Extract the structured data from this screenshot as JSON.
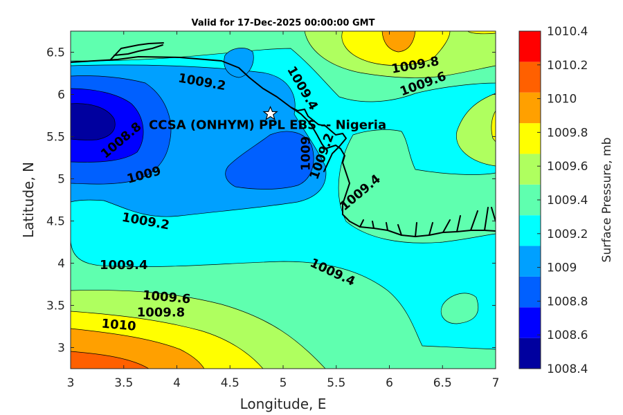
{
  "chart_data": {
    "type": "contour-map",
    "title": "Valid for 17-Dec-2025 00:00:00 GMT",
    "xlabel": "Longitude, E",
    "ylabel": "Latitude, N",
    "xlim": [
      3,
      7
    ],
    "ylim": [
      2.75,
      6.75
    ],
    "x_ticks": [
      "3",
      "3.5",
      "4",
      "4.5",
      "5",
      "5.5",
      "6",
      "6.5",
      "7"
    ],
    "y_ticks": [
      "3",
      "3.5",
      "4",
      "4.5",
      "5",
      "5.5",
      "6",
      "6.5"
    ],
    "colorbar": {
      "label": "Surface Pressure, mb",
      "levels": [
        1008.4,
        1008.6,
        1008.8,
        1009.0,
        1009.2,
        1009.4,
        1009.6,
        1009.8,
        1010.0,
        1010.2,
        1010.4
      ],
      "tick_labels": [
        "1010.4",
        "1010.2",
        "1010",
        "1009.8",
        "1009.6",
        "1009.4",
        "1009.2",
        "1009",
        "1008.8",
        "1008.6",
        "1008.4"
      ],
      "colors": [
        "#00009f",
        "#0000ff",
        "#0060ff",
        "#00a0ff",
        "#00ffff",
        "#5fffaf",
        "#afff5f",
        "#ffff00",
        "#ffa000",
        "#ff6000",
        "#ff0000"
      ]
    },
    "contour_labels": [
      {
        "text": "1009.2",
        "lon": 4.23,
        "lat": 6.1
      },
      {
        "text": "1009.4",
        "lon": 5.15,
        "lat": 6.05
      },
      {
        "text": "1009.8",
        "lon": 6.25,
        "lat": 6.3
      },
      {
        "text": "1009.6",
        "lon": 6.33,
        "lat": 6.08
      },
      {
        "text": "1008.8",
        "lon": 3.5,
        "lat": 5.42
      },
      {
        "text": "1009",
        "lon": 3.7,
        "lat": 5.0
      },
      {
        "text": "1009",
        "lon": 5.25,
        "lat": 5.3
      },
      {
        "text": "1009.2",
        "lon": 5.4,
        "lat": 5.25
      },
      {
        "text": "1009.4",
        "lon": 5.75,
        "lat": 4.8
      },
      {
        "text": "1009.2",
        "lon": 3.7,
        "lat": 4.45
      },
      {
        "text": "1009.4",
        "lon": 3.5,
        "lat": 3.93
      },
      {
        "text": "1009.4",
        "lon": 5.45,
        "lat": 3.85
      },
      {
        "text": "1009.6",
        "lon": 3.9,
        "lat": 3.55
      },
      {
        "text": "1009.8",
        "lon": 3.85,
        "lat": 3.37
      },
      {
        "text": "1010",
        "lon": 3.45,
        "lat": 3.22
      }
    ],
    "station": {
      "name": "CCSA (ONHYM) PPL EBS -- Nigeria",
      "lon": 4.88,
      "lat": 5.77,
      "marker": "white-star"
    }
  }
}
